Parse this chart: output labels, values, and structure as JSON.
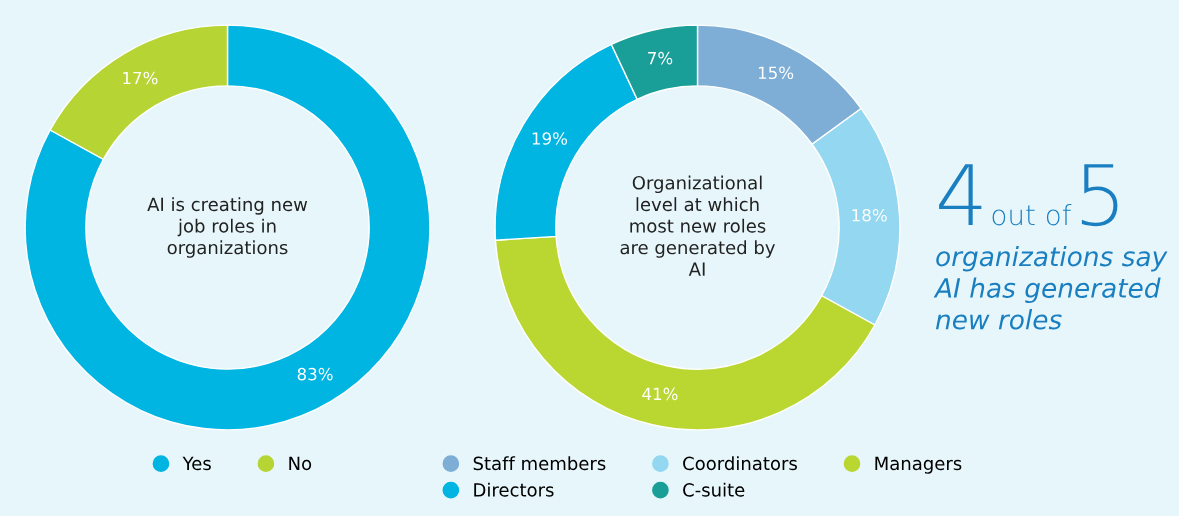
{
  "chart_data": [
    {
      "type": "donut",
      "title": "AI is creating new job roles in organizations",
      "categories": [
        "Yes",
        "No"
      ],
      "values": [
        83,
        17
      ],
      "colors": [
        "#00b5e2",
        "#b6d433"
      ],
      "value_labels": [
        "83%",
        "17%"
      ],
      "legend": "bottom"
    },
    {
      "type": "donut",
      "title": "Organizational level at which most new roles are generated by AI",
      "categories": [
        "Staff members",
        "Coordinators",
        "Managers",
        "Directors",
        "C-suite"
      ],
      "values": [
        15,
        18,
        41,
        19,
        7
      ],
      "colors": [
        "#7eaed6",
        "#93d7f0",
        "#bad630",
        "#00b5e2",
        "#1a9e98"
      ],
      "value_labels": [
        "15%",
        "18%",
        "41%",
        "19%",
        "7%"
      ],
      "legend": "bottom"
    },
    {
      "type": "other",
      "annotations": [
        "4",
        "out of",
        "5",
        "organizations say AI has generated new roles"
      ]
    }
  ]
}
